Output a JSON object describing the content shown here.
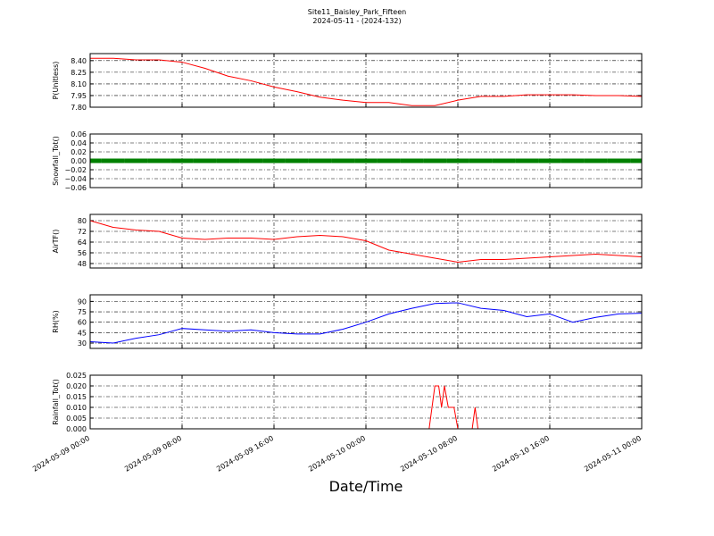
{
  "chart_data": [
    {
      "type": "line",
      "title": "Site11_Baisley_Park_Fifteen",
      "subtitle": "2024-05-11 - (2024-132)",
      "ylabel": "P(Unitless)",
      "x": [
        "2024-05-09 00:00",
        "2024-05-09 02:00",
        "2024-05-09 04:00",
        "2024-05-09 06:00",
        "2024-05-09 08:00",
        "2024-05-09 10:00",
        "2024-05-09 12:00",
        "2024-05-09 14:00",
        "2024-05-09 16:00",
        "2024-05-09 18:00",
        "2024-05-09 20:00",
        "2024-05-09 22:00",
        "2024-05-10 00:00",
        "2024-05-10 02:00",
        "2024-05-10 04:00",
        "2024-05-10 06:00",
        "2024-05-10 08:00",
        "2024-05-10 10:00",
        "2024-05-10 12:00",
        "2024-05-10 14:00",
        "2024-05-10 16:00",
        "2024-05-10 18:00",
        "2024-05-10 20:00",
        "2024-05-10 22:00",
        "2024-05-11 00:00"
      ],
      "series": [
        {
          "name": "P",
          "color": "#ff0000",
          "values": [
            8.43,
            8.43,
            8.41,
            8.41,
            8.38,
            8.3,
            8.2,
            8.14,
            8.06,
            8.0,
            7.93,
            7.89,
            7.86,
            7.86,
            7.82,
            7.82,
            7.89,
            7.94,
            7.94,
            7.96,
            7.96,
            7.96,
            7.95,
            7.95,
            7.94
          ]
        }
      ],
      "xlim": [
        "2024-05-09 00:00",
        "2024-05-11 00:00"
      ],
      "xticks": [
        "2024-05-09 00:00",
        "2024-05-09 08:00",
        "2024-05-09 16:00",
        "2024-05-10 00:00",
        "2024-05-10 08:00",
        "2024-05-10 16:00",
        "2024-05-11 00:00"
      ],
      "ylim": [
        7.8,
        8.49
      ],
      "yticks": [
        {
          "value": 7.8,
          "label": "7.80"
        },
        {
          "value": 7.95,
          "label": "7.95"
        },
        {
          "value": 8.1,
          "label": "8.10"
        },
        {
          "value": 8.25,
          "label": "8.25"
        },
        {
          "value": 8.4,
          "label": "8.40"
        }
      ],
      "grid": true
    },
    {
      "type": "line",
      "ylabel": "Snowfall_Tot()",
      "markers": true,
      "x": [
        "2024-05-09 00:00",
        "2024-05-09 02:00",
        "2024-05-09 04:00",
        "2024-05-09 06:00",
        "2024-05-09 08:00",
        "2024-05-09 10:00",
        "2024-05-09 12:00",
        "2024-05-09 14:00",
        "2024-05-09 16:00",
        "2024-05-09 18:00",
        "2024-05-09 20:00",
        "2024-05-09 22:00",
        "2024-05-10 00:00",
        "2024-05-10 02:00",
        "2024-05-10 04:00",
        "2024-05-10 06:00",
        "2024-05-10 08:00",
        "2024-05-10 10:00",
        "2024-05-10 12:00",
        "2024-05-10 14:00",
        "2024-05-10 16:00",
        "2024-05-10 18:00",
        "2024-05-10 20:00",
        "2024-05-10 22:00",
        "2024-05-11 00:00"
      ],
      "series": [
        {
          "name": "Snowfall_Tot",
          "color": "#008000",
          "values": [
            0,
            0,
            0,
            0,
            0,
            0,
            0,
            0,
            0,
            0,
            0,
            0,
            0,
            0,
            0,
            0,
            0,
            0,
            0,
            0,
            0,
            0,
            0,
            0,
            0
          ]
        }
      ],
      "xlim": [
        "2024-05-09 00:00",
        "2024-05-11 00:00"
      ],
      "xticks": [
        "2024-05-09 00:00",
        "2024-05-09 08:00",
        "2024-05-09 16:00",
        "2024-05-10 00:00",
        "2024-05-10 08:00",
        "2024-05-10 16:00",
        "2024-05-11 00:00"
      ],
      "ylim": [
        -0.06,
        0.06
      ],
      "yticks": [
        {
          "value": -0.06,
          "label": "−0.06"
        },
        {
          "value": -0.04,
          "label": "−0.04"
        },
        {
          "value": -0.02,
          "label": "−0.02"
        },
        {
          "value": 0,
          "label": "0.00"
        },
        {
          "value": 0.02,
          "label": "0.02"
        },
        {
          "value": 0.04,
          "label": "0.04"
        },
        {
          "value": 0.06,
          "label": "0.06"
        }
      ],
      "grid": true
    },
    {
      "type": "line",
      "ylabel": "AirTF()",
      "x": [
        "2024-05-09 00:00",
        "2024-05-09 02:00",
        "2024-05-09 04:00",
        "2024-05-09 06:00",
        "2024-05-09 08:00",
        "2024-05-09 10:00",
        "2024-05-09 12:00",
        "2024-05-09 14:00",
        "2024-05-09 16:00",
        "2024-05-09 18:00",
        "2024-05-09 20:00",
        "2024-05-09 22:00",
        "2024-05-10 00:00",
        "2024-05-10 02:00",
        "2024-05-10 04:00",
        "2024-05-10 06:00",
        "2024-05-10 08:00",
        "2024-05-10 10:00",
        "2024-05-10 12:00",
        "2024-05-10 14:00",
        "2024-05-10 16:00",
        "2024-05-10 18:00",
        "2024-05-10 20:00",
        "2024-05-10 22:00",
        "2024-05-11 00:00"
      ],
      "series": [
        {
          "name": "AirTF",
          "color": "#ff0000",
          "values": [
            80,
            75,
            73,
            72,
            67,
            66,
            67,
            67,
            66,
            68,
            69,
            68,
            65,
            58,
            55,
            52,
            49,
            51,
            51,
            52,
            53,
            54,
            55,
            54,
            53
          ]
        }
      ],
      "xlim": [
        "2024-05-09 00:00",
        "2024-05-11 00:00"
      ],
      "xticks": [
        "2024-05-09 00:00",
        "2024-05-09 08:00",
        "2024-05-09 16:00",
        "2024-05-10 00:00",
        "2024-05-10 08:00",
        "2024-05-10 16:00",
        "2024-05-11 00:00"
      ],
      "ylim": [
        44.67,
        84.67
      ],
      "yticks": [
        48,
        56,
        64,
        72,
        80
      ],
      "grid": true
    },
    {
      "type": "line",
      "ylabel": "RH(%)",
      "x": [
        "2024-05-09 00:00",
        "2024-05-09 02:00",
        "2024-05-09 04:00",
        "2024-05-09 06:00",
        "2024-05-09 08:00",
        "2024-05-09 10:00",
        "2024-05-09 12:00",
        "2024-05-09 14:00",
        "2024-05-09 16:00",
        "2024-05-09 18:00",
        "2024-05-09 20:00",
        "2024-05-09 22:00",
        "2024-05-10 00:00",
        "2024-05-10 02:00",
        "2024-05-10 04:00",
        "2024-05-10 06:00",
        "2024-05-10 08:00",
        "2024-05-10 10:00",
        "2024-05-10 12:00",
        "2024-05-10 14:00",
        "2024-05-10 16:00",
        "2024-05-10 18:00",
        "2024-05-10 20:00",
        "2024-05-10 22:00",
        "2024-05-11 00:00"
      ],
      "series": [
        {
          "name": "RH",
          "color": "#0000ff",
          "values": [
            32,
            30,
            37,
            42,
            51,
            49,
            47,
            49,
            45,
            43,
            43,
            50,
            60,
            72,
            80,
            87,
            88,
            80,
            77,
            68,
            72,
            60,
            67,
            72,
            73
          ]
        }
      ],
      "xlim": [
        "2024-05-09 00:00",
        "2024-05-11 00:00"
      ],
      "xticks": [
        "2024-05-09 00:00",
        "2024-05-09 08:00",
        "2024-05-09 16:00",
        "2024-05-10 00:00",
        "2024-05-10 08:00",
        "2024-05-10 16:00",
        "2024-05-11 00:00"
      ],
      "ylim": [
        22.3,
        99.5
      ],
      "yticks": [
        30,
        45,
        60,
        75,
        90
      ],
      "grid": true
    },
    {
      "type": "line",
      "ylabel": "Rainfall_Tot()",
      "xlabel": "Date/Time",
      "x": [
        "2024-05-09 00:00",
        "2024-05-10 05:30",
        "2024-05-10 06:00",
        "2024-05-10 06:20",
        "2024-05-10 06:35",
        "2024-05-10 06:50",
        "2024-05-10 07:10",
        "2024-05-10 07:40",
        "2024-05-10 08:00",
        "2024-05-10 09:15",
        "2024-05-10 09:30",
        "2024-05-10 09:45",
        "2024-05-11 00:00"
      ],
      "series": [
        {
          "name": "Rainfall_Tot",
          "color": "#ff0000",
          "values": [
            0,
            0,
            0.02,
            0.02,
            0.01,
            0.02,
            0.01,
            0.01,
            0,
            0,
            0.01,
            0,
            0
          ]
        }
      ],
      "xlim": [
        "2024-05-09 00:00",
        "2024-05-11 00:00"
      ],
      "xticks": [
        "2024-05-09 00:00",
        "2024-05-09 08:00",
        "2024-05-09 16:00",
        "2024-05-10 00:00",
        "2024-05-10 08:00",
        "2024-05-10 16:00",
        "2024-05-11 00:00"
      ],
      "ylim": [
        0,
        0.025
      ],
      "yticks": [
        {
          "value": 0,
          "label": "0.000"
        },
        {
          "value": 0.005,
          "label": "0.005"
        },
        {
          "value": 0.01,
          "label": "0.010"
        },
        {
          "value": 0.015,
          "label": "0.015"
        },
        {
          "value": 0.02,
          "label": "0.020"
        },
        {
          "value": 0.025,
          "label": "0.025"
        }
      ],
      "grid": true
    }
  ]
}
